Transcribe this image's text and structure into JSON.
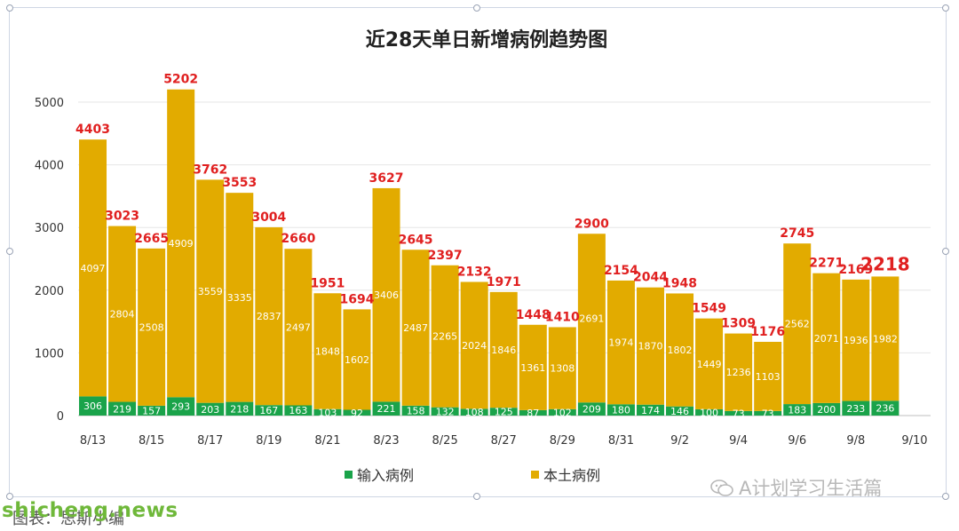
{
  "chart_data": {
    "type": "bar",
    "stacked": true,
    "title": "近28天单日新增病例趋势图",
    "categories": [
      "8/13",
      "8/14",
      "8/15",
      "8/16",
      "8/17",
      "8/18",
      "8/19",
      "8/20",
      "8/21",
      "8/22",
      "8/23",
      "8/24",
      "8/25",
      "8/26",
      "8/27",
      "8/28",
      "8/29",
      "8/30",
      "8/31",
      "9/1",
      "9/2",
      "9/3",
      "9/4",
      "9/5",
      "9/6",
      "9/7",
      "9/8",
      "9/9"
    ],
    "x_tick_labels": [
      "8/13",
      "8/15",
      "8/17",
      "8/19",
      "8/21",
      "8/23",
      "8/25",
      "8/27",
      "8/29",
      "8/31",
      "9/2",
      "9/4",
      "9/6",
      "9/8",
      "9/10"
    ],
    "series": [
      {
        "name": "输入病例",
        "color": "#1aa34a",
        "values": [
          306,
          219,
          157,
          293,
          203,
          218,
          167,
          163,
          103,
          92,
          221,
          158,
          132,
          108,
          125,
          87,
          102,
          209,
          180,
          174,
          146,
          100,
          73,
          73,
          183,
          200,
          233,
          236
        ]
      },
      {
        "name": "本土病例",
        "color": "#e2ab00",
        "values": [
          4097,
          2804,
          2508,
          4909,
          3559,
          3335,
          2837,
          2497,
          1848,
          1602,
          3406,
          2487,
          2265,
          2024,
          1846,
          1361,
          1308,
          2691,
          1974,
          1870,
          1802,
          1449,
          1236,
          1103,
          2562,
          2071,
          1936,
          1982
        ]
      }
    ],
    "totals": [
      4403,
      3023,
      2665,
      5202,
      3762,
      3553,
      3004,
      2660,
      1951,
      1694,
      3627,
      2645,
      2397,
      2132,
      1971,
      1448,
      1410,
      2900,
      2154,
      2044,
      1948,
      1549,
      1309,
      1176,
      2745,
      2271,
      2169,
      2218
    ],
    "y_ticks": [
      0,
      1000,
      2000,
      3000,
      4000,
      5000
    ],
    "ylim": [
      0,
      5500
    ],
    "grid": true,
    "legend": "bottom-center",
    "total_label_color": "#e02020"
  },
  "watermark": {
    "wechat_text": "A计划学习生活篇",
    "site_text": "shicheng.news"
  },
  "footer": {
    "caption": "图表：思斯小编"
  }
}
